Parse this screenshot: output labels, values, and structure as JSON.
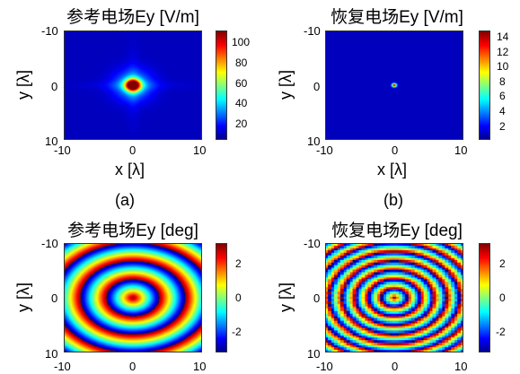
{
  "captions": {
    "a": "(a)",
    "b": "(b)"
  },
  "chart_data": [
    {
      "type": "heatmap",
      "title": "参考电场Ey [V/m]",
      "xlabel": "x [λ]",
      "ylabel": "y [λ]",
      "x_ticks": [
        "-10",
        "0",
        "10"
      ],
      "y_ticks": [
        "-10",
        "0",
        "10"
      ],
      "xlim": [
        -10,
        10
      ],
      "ylim": [
        -10,
        10
      ],
      "colorbar_ticks": [
        "100",
        "80",
        "60",
        "40",
        "20"
      ],
      "clim": [
        0,
        110
      ],
      "colormap": "jet",
      "description_values": {
        "peak": 110,
        "peak_location": [
          0,
          0
        ]
      }
    },
    {
      "type": "heatmap",
      "title": "恢复电场Ey [V/m]",
      "xlabel": "x [λ]",
      "ylabel": "y [λ]",
      "x_ticks": [
        "-10",
        "0",
        "10"
      ],
      "y_ticks": [
        "-10",
        "0",
        "10"
      ],
      "xlim": [
        -10,
        10
      ],
      "ylim": [
        -10,
        10
      ],
      "colorbar_ticks": [
        "14",
        "12",
        "10",
        "8",
        "6",
        "4",
        "2"
      ],
      "clim": [
        0,
        15
      ],
      "colormap": "jet",
      "description_values": {
        "peak": 15,
        "peak_location": [
          0,
          0
        ]
      }
    },
    {
      "type": "heatmap",
      "title": "参考电场Ey [deg]",
      "xlabel": "",
      "ylabel": "y [λ]",
      "x_ticks": [
        "-10",
        "0",
        "10"
      ],
      "y_ticks": [
        "-10",
        "0",
        "10"
      ],
      "xlim": [
        -10,
        10
      ],
      "ylim": [
        -10,
        10
      ],
      "colorbar_ticks": [
        "2",
        "0",
        "-2"
      ],
      "clim": [
        -3.14,
        3.14
      ],
      "colormap": "jet"
    },
    {
      "type": "heatmap",
      "title": "恢复电场Ey [deg]",
      "xlabel": "",
      "ylabel": "y [λ]",
      "x_ticks": [
        "-10",
        "0",
        "10"
      ],
      "y_ticks": [
        "-10",
        "0",
        "10"
      ],
      "xlim": [
        -10,
        10
      ],
      "ylim": [
        -10,
        10
      ],
      "colorbar_ticks": [
        "2",
        "0",
        "-2"
      ],
      "clim": [
        -3.14,
        3.14
      ],
      "colormap": "jet"
    }
  ]
}
